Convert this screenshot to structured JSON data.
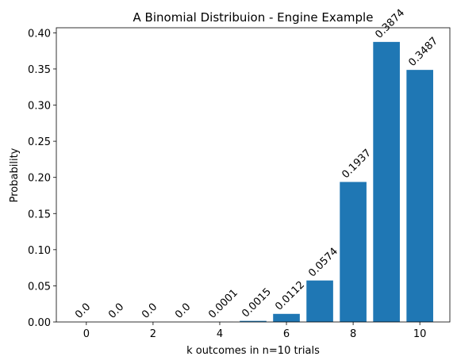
{
  "chart_data": {
    "type": "bar",
    "title": "A Binomial Distribuion - Engine Example",
    "xlabel": "k outcomes in n=10 trials",
    "ylabel": "Probability",
    "x": [
      0,
      1,
      2,
      3,
      4,
      5,
      6,
      7,
      8,
      9,
      10
    ],
    "values": [
      0.0,
      0.0,
      0.0,
      0.0,
      0.0001,
      0.0015,
      0.0112,
      0.0574,
      0.1937,
      0.3874,
      0.3487
    ],
    "data_labels": [
      "0.0",
      "0.0",
      "0.0",
      "0.0",
      "0.0001",
      "0.0015",
      "0.0112",
      "0.0574",
      "0.1937",
      "0.3874",
      "0.3487"
    ],
    "xlim": [
      -0.9,
      10.9
    ],
    "ylim": [
      0,
      0.407
    ],
    "xticks": [
      0,
      2,
      4,
      6,
      8,
      10
    ],
    "xtick_labels": [
      "0",
      "2",
      "4",
      "6",
      "8",
      "10"
    ],
    "yticks": [
      0.0,
      0.05,
      0.1,
      0.15,
      0.2,
      0.25,
      0.3,
      0.35,
      0.4
    ],
    "ytick_labels": [
      "0.00",
      "0.05",
      "0.10",
      "0.15",
      "0.20",
      "0.25",
      "0.30",
      "0.35",
      "0.40"
    ],
    "bar_color": "#1f77b4",
    "grid": false,
    "legend": "none"
  }
}
